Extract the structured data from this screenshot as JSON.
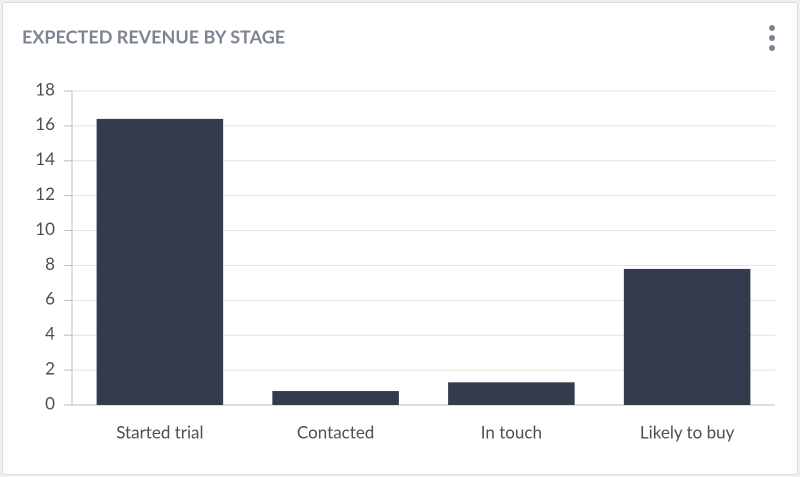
{
  "chart_data": {
    "type": "bar",
    "title": "EXPECTED REVENUE BY STAGE",
    "categories": [
      "Started trial",
      "Contacted",
      "In touch",
      "Likely to buy"
    ],
    "values": [
      16.4,
      0.8,
      1.3,
      7.8
    ],
    "color": "#343b4c",
    "ylim": [
      0,
      18
    ],
    "yticks": [
      0,
      2,
      4,
      6,
      8,
      10,
      12,
      14,
      16,
      18
    ],
    "grid": true
  }
}
